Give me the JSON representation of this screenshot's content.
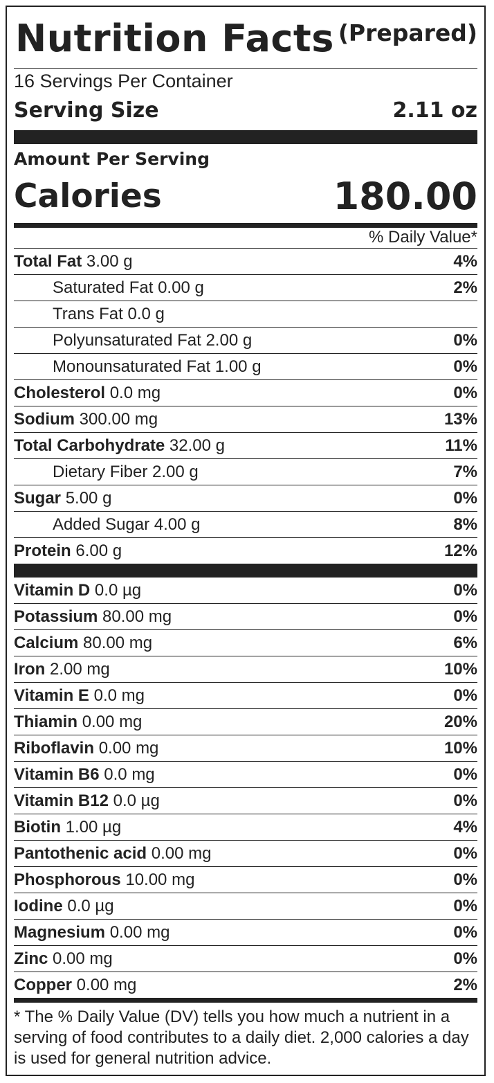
{
  "header": {
    "title": "Nutrition Facts",
    "subtitle": "(Prepared)",
    "servings_per_container": "16 Servings Per Container",
    "serving_size_label": "Serving Size",
    "serving_size_value": "2.11 oz"
  },
  "amount_per_serving": "Amount Per Serving",
  "calories": {
    "label": "Calories",
    "value": "180.00"
  },
  "dv_header": "% Daily Value*",
  "nutrients": [
    {
      "name": "Total Fat",
      "amount": "3.00 g",
      "dv": "4%"
    },
    {
      "name": "Saturated Fat 0.00 g",
      "amount": "",
      "dv": "2%"
    },
    {
      "name": "Trans Fat 0.0 g",
      "amount": "",
      "dv": ""
    },
    {
      "name": "Polyunsaturated Fat 2.00 g",
      "amount": "",
      "dv": "0%"
    },
    {
      "name": "Monounsaturated Fat 1.00 g",
      "amount": "",
      "dv": "0%"
    },
    {
      "name": "Cholesterol",
      "amount": "0.0 mg",
      "dv": "0%"
    },
    {
      "name": "Sodium",
      "amount": "300.00 mg",
      "dv": "13%"
    },
    {
      "name": "Total Carbohydrate",
      "amount": "32.00 g",
      "dv": "11%"
    },
    {
      "name": "Dietary Fiber 2.00 g",
      "amount": "",
      "dv": "7%"
    },
    {
      "name": "Sugar",
      "amount": "5.00 g",
      "dv": "0%"
    },
    {
      "name": "Added Sugar 4.00 g",
      "amount": "",
      "dv": "8%"
    },
    {
      "name": "Protein",
      "amount": "6.00 g",
      "dv": "12%"
    }
  ],
  "micronutrients": [
    {
      "name": "Vitamin D",
      "amount": "0.0 µg",
      "dv": "0%"
    },
    {
      "name": "Potassium",
      "amount": "80.00 mg",
      "dv": "0%"
    },
    {
      "name": "Calcium",
      "amount": "80.00 mg",
      "dv": "6%"
    },
    {
      "name": "Iron",
      "amount": "2.00 mg",
      "dv": "10%"
    },
    {
      "name": "Vitamin E",
      "amount": "0.0 mg",
      "dv": "0%"
    },
    {
      "name": "Thiamin",
      "amount": "0.00 mg",
      "dv": "20%"
    },
    {
      "name": "Riboflavin",
      "amount": "0.00 mg",
      "dv": "10%"
    },
    {
      "name": "Vitamin B6",
      "amount": "0.0 mg",
      "dv": "0%"
    },
    {
      "name": "Vitamin B12",
      "amount": "0.0 µg",
      "dv": "0%"
    },
    {
      "name": "Biotin",
      "amount": "1.00 µg",
      "dv": "4%"
    },
    {
      "name": "Pantothenic acid",
      "amount": "0.00 mg",
      "dv": "0%"
    },
    {
      "name": "Phosphorous",
      "amount": "10.00 mg",
      "dv": "0%"
    },
    {
      "name": "Iodine",
      "amount": "0.0 µg",
      "dv": "0%"
    },
    {
      "name": "Magnesium",
      "amount": "0.00 mg",
      "dv": "0%"
    },
    {
      "name": "Zinc",
      "amount": "0.00 mg",
      "dv": "0%"
    },
    {
      "name": "Copper",
      "amount": "0.00 mg",
      "dv": "2%"
    }
  ],
  "footnote": "* The % Daily Value (DV) tells you how much a nutrient in a serving of food contributes to a daily diet. 2,000 calories a day is used for general nutrition advice."
}
